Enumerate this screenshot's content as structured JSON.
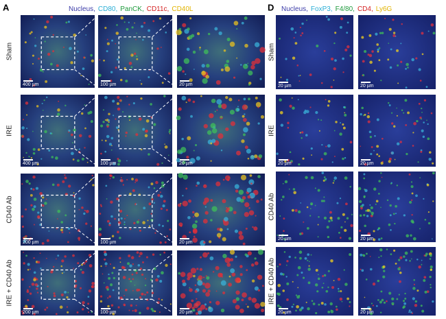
{
  "panels": [
    {
      "letter": "A",
      "legend": [
        {
          "text": "Nucleus,",
          "color": "#3b3ba8"
        },
        {
          "text": "CD80,",
          "color": "#2aaed6"
        },
        {
          "text": "PanCK,",
          "color": "#1e9a3c"
        },
        {
          "text": "CD11c,",
          "color": "#d42020"
        },
        {
          "text": "CD40L",
          "color": "#e2b400"
        }
      ],
      "rows": [
        {
          "label": "Sham",
          "scales": [
            "400 µm",
            "100 µm",
            "20 µm"
          ]
        },
        {
          "label": "IRE",
          "scales": [
            "400 µm",
            "100 µm",
            "20 µm"
          ]
        },
        {
          "label": "CD40 Ab",
          "scales": [
            "200 µm",
            "100 µm",
            "20 µm"
          ]
        },
        {
          "label": "IRE + CD40 Ab",
          "scales": [
            "200 µm",
            "100 µm",
            "20 µm"
          ]
        }
      ]
    },
    {
      "letter": "D",
      "legend": [
        {
          "text": "Nucleus,",
          "color": "#3b3ba8"
        },
        {
          "text": "FoxP3,",
          "color": "#2aaed6"
        },
        {
          "text": "F4/80,",
          "color": "#1e9a3c"
        },
        {
          "text": "CD4,",
          "color": "#d42020"
        },
        {
          "text": "Ly6G",
          "color": "#e2b400"
        }
      ],
      "rows": [
        {
          "label": "Sham",
          "scales": [
            "20 µm",
            "20 µm"
          ]
        },
        {
          "label": "IRE",
          "scales": [
            "20 µm",
            "20 µm"
          ]
        },
        {
          "label": "CD40 Ab",
          "scales": [
            "20 µm",
            "20 µm"
          ]
        },
        {
          "label": "IRE + CD40 Ab",
          "scales": [
            "20 µm",
            "20 µm"
          ]
        }
      ]
    }
  ]
}
